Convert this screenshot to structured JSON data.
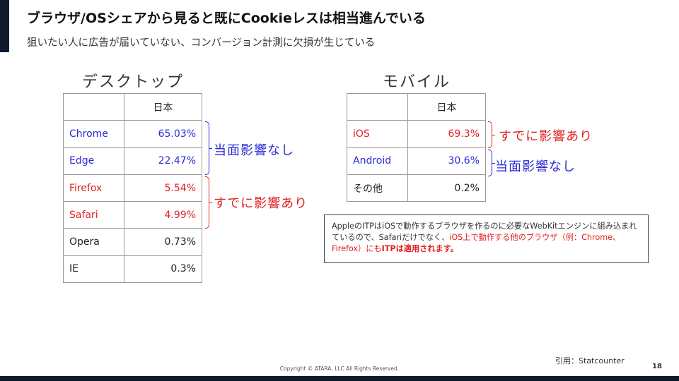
{
  "title": "ブラウザ/OSシェアから見ると既にCookieレスは相当進んでいる",
  "subtitle": "狙いたい人に広告が届いていない、コンバージョン計測に欠損が生じている",
  "desktop": {
    "heading": "デスクトップ",
    "column": "日本",
    "rows": [
      {
        "label": "Chrome",
        "value": "65.03%",
        "color": "#2a2ad6"
      },
      {
        "label": "Edge",
        "value": "22.47%",
        "color": "#2a2ad6"
      },
      {
        "label": "Firefox",
        "value": "5.54%",
        "color": "#e02020"
      },
      {
        "label": "Safari",
        "value": "4.99%",
        "color": "#e02020"
      },
      {
        "label": "Opera",
        "value": "0.73%",
        "color": "#222222"
      },
      {
        "label": "IE",
        "value": "0.3%",
        "color": "#222222"
      }
    ],
    "bracket_blue": "当面影響なし",
    "bracket_red": "すでに影響あり"
  },
  "mobile": {
    "heading": "モバイル",
    "column": "日本",
    "rows": [
      {
        "label": "iOS",
        "value": "69.3%",
        "color": "#e02020"
      },
      {
        "label": "Android",
        "value": "30.6%",
        "color": "#2a2ad6"
      },
      {
        "label": "その他",
        "value": "0.2%",
        "color": "#222222"
      }
    ],
    "bracket_red": "すでに影響あり",
    "bracket_blue": "当面影響なし"
  },
  "note": {
    "part1": "AppleのITPはiOSで動作するブラウザを作るのに必要なWebKitエンジンに組み込まれているので、Safariだけでなく、",
    "part2": "iOS上で動作する他のブラウザ（例：Chrome、Firefox）にも",
    "part3": "ITPは適用されます",
    "part4": "。"
  },
  "source": "引用：Statcounter",
  "copyright": "Copyright © ATARA, LLC All Rights Reserved.",
  "page_number": "18"
}
